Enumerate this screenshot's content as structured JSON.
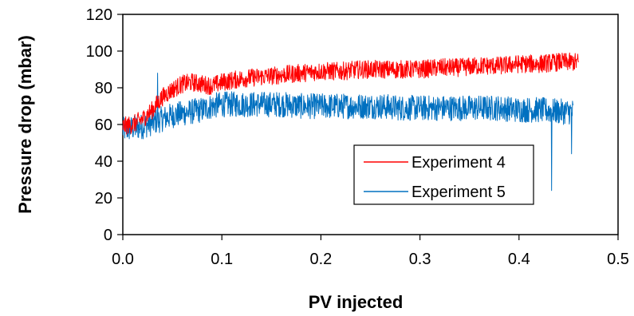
{
  "chart_data": {
    "type": "line",
    "title": "",
    "xlabel": "PV injected",
    "ylabel": "Pressure drop (mbar)",
    "xlim": [
      0,
      0.5
    ],
    "ylim": [
      0,
      120
    ],
    "x_ticks": [
      "0.0",
      "0.1",
      "0.2",
      "0.3",
      "0.4",
      "0.5"
    ],
    "y_ticks": [
      "0",
      "20",
      "40",
      "60",
      "80",
      "100",
      "120"
    ],
    "grid": false,
    "legend_position": "inside-lower-right",
    "series": [
      {
        "name": "Experiment 4",
        "color": "#ff0000",
        "x": [
          0.0,
          0.01,
          0.02,
          0.03,
          0.04,
          0.05,
          0.06,
          0.07,
          0.08,
          0.09,
          0.1,
          0.12,
          0.14,
          0.16,
          0.18,
          0.2,
          0.22,
          0.24,
          0.26,
          0.28,
          0.3,
          0.32,
          0.34,
          0.36,
          0.38,
          0.4,
          0.42,
          0.44,
          0.46
        ],
        "y": [
          59,
          60,
          63,
          68,
          75,
          79,
          82,
          83,
          82,
          81,
          83,
          85,
          86,
          87,
          88,
          89,
          89,
          90,
          90,
          90,
          90,
          91,
          91,
          92,
          92,
          93,
          93,
          94,
          94
        ],
        "noise": 5
      },
      {
        "name": "Experiment 5",
        "color": "#0070c0",
        "x": [
          0.0,
          0.01,
          0.02,
          0.03,
          0.04,
          0.05,
          0.06,
          0.07,
          0.08,
          0.09,
          0.1,
          0.12,
          0.14,
          0.16,
          0.18,
          0.2,
          0.22,
          0.24,
          0.26,
          0.28,
          0.3,
          0.32,
          0.34,
          0.36,
          0.38,
          0.4,
          0.42,
          0.44,
          0.455
        ],
        "y": [
          57,
          58,
          59,
          61,
          63,
          65,
          66,
          67,
          68,
          70,
          71,
          71,
          71,
          71,
          70,
          70,
          70,
          70,
          70,
          69,
          69,
          69,
          69,
          69,
          69,
          68,
          68,
          67,
          67
        ],
        "noise": 7,
        "spikes": [
          {
            "x": 0.035,
            "y": 88
          },
          {
            "x": 0.433,
            "y": 24
          },
          {
            "x": 0.453,
            "y": 44
          }
        ]
      }
    ]
  }
}
